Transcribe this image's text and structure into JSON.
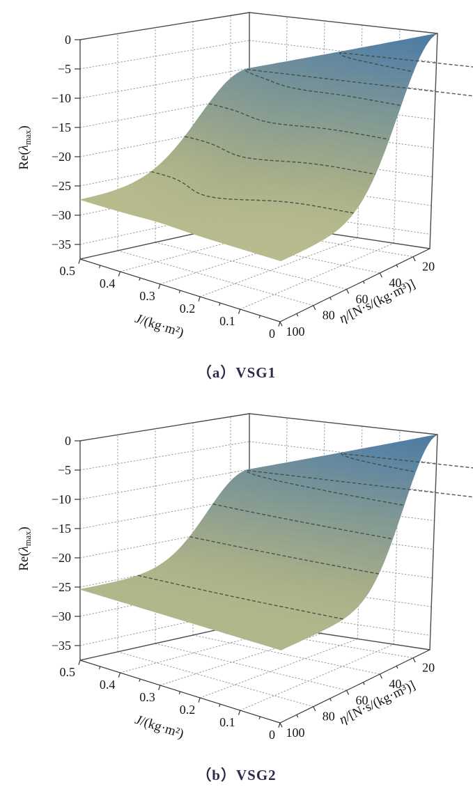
{
  "figure": {
    "background": "#ffffff"
  },
  "captions": [
    {
      "label": "（a）VSG1",
      "color": "#2b2b4a"
    },
    {
      "label": "（b）VSG2",
      "color": "#2b2b4a"
    }
  ],
  "chart_data": [
    {
      "type": "surface3d",
      "title": "（a）VSG1",
      "x_axis": {
        "label": "J/(kg·m²)",
        "label_parts": [
          [
            "J",
            "i"
          ],
          [
            "/(kg·m²)",
            "n"
          ]
        ],
        "min": 0,
        "max": 0.5,
        "ticks": [
          0.5,
          0.4,
          0.3,
          0.2,
          0.1,
          0
        ],
        "tick_labels": [
          "0.5",
          "0.4",
          "0.3",
          "0.2",
          "0.1",
          "0"
        ],
        "minor_ticks": [
          0.45,
          0.35,
          0.25,
          0.15,
          0.05
        ]
      },
      "y_axis": {
        "label": "η/[N·s/(kg·m³)]",
        "label_parts": [
          [
            "η",
            "i"
          ],
          [
            "/[N·s/(kg·m³)]",
            "n"
          ]
        ],
        "min": 10,
        "max": 100,
        "ticks": [
          100,
          80,
          60,
          40,
          20
        ],
        "tick_labels": [
          "100",
          "80",
          "60",
          "40",
          "20"
        ],
        "minor_ticks": [
          90,
          70,
          50,
          30
        ]
      },
      "z_axis": {
        "label": "Re(λmax)",
        "label_parts": [
          [
            "Re(",
            "n"
          ],
          [
            "λ",
            "i"
          ],
          [
            "max",
            "sub"
          ],
          [
            ")",
            "n"
          ]
        ],
        "min": -37.5,
        "max": 0,
        "ticks": [
          0,
          -5,
          -10,
          -15,
          -20,
          -25,
          -30,
          -35
        ],
        "tick_labels": [
          "0",
          "−5",
          "−10",
          "−15",
          "−20",
          "−25",
          "−30",
          "−35"
        ]
      },
      "contour_levels": [
        -5,
        -10,
        -15,
        -20,
        -25
      ],
      "surface_model": {
        "plateau": -27.4,
        "ridge_slope": -20,
        "width0": 30,
        "width_J": 14,
        "width_bump": {
          "amp": 9,
          "center_J": 0.3,
          "sigma": 0.1
        }
      },
      "sample_points": {
        "J": [
          0,
          0.1,
          0.2,
          0.3,
          0.4,
          0.5
        ],
        "eta": [
          10,
          20,
          40,
          60,
          80,
          100
        ],
        "z": [
          [
            0,
            -2.9,
            -17.3,
            -25.7,
            -27.3,
            -27.4
          ],
          [
            -2,
            -4.4,
            -17.1,
            -25.3,
            -27.2,
            -27.4
          ],
          [
            -4,
            -5.7,
            -15.7,
            -24.0,
            -26.9,
            -27.3
          ],
          [
            -6,
            -7.1,
            -14.2,
            -21.8,
            -25.9,
            -27.1
          ],
          [
            -8,
            -9.2,
            -16.7,
            -23.7,
            -26.6,
            -27.3
          ],
          [
            -10,
            -11.2,
            -18.3,
            -24.5,
            -26.9,
            -27.4
          ]
        ]
      }
    },
    {
      "type": "surface3d",
      "title": "（b）VSG2",
      "x_axis": {
        "label": "J/(kg·m²)",
        "label_parts": [
          [
            "J",
            "i"
          ],
          [
            "/(kg·m²)",
            "n"
          ]
        ],
        "min": 0,
        "max": 0.5,
        "ticks": [
          0.5,
          0.4,
          0.3,
          0.2,
          0.1,
          0
        ],
        "tick_labels": [
          "0.5",
          "0.4",
          "0.3",
          "0.2",
          "0.1",
          "0"
        ],
        "minor_ticks": [
          0.45,
          0.35,
          0.25,
          0.15,
          0.05
        ]
      },
      "y_axis": {
        "label": "η/[N·s/(kg·m³)]",
        "label_parts": [
          [
            "η",
            "i"
          ],
          [
            "/[N·s/(kg·m³)]",
            "n"
          ]
        ],
        "min": 10,
        "max": 100,
        "ticks": [
          100,
          80,
          60,
          40,
          20
        ],
        "tick_labels": [
          "100",
          "80",
          "60",
          "40",
          "20"
        ],
        "minor_ticks": [
          90,
          70,
          50,
          30
        ]
      },
      "z_axis": {
        "label": "Re(λmax)",
        "label_parts": [
          [
            "Re(",
            "n"
          ],
          [
            "λ",
            "i"
          ],
          [
            "max",
            "sub"
          ],
          [
            ")",
            "n"
          ]
        ],
        "min": -37.5,
        "max": 0,
        "ticks": [
          0,
          -5,
          -10,
          -15,
          -20,
          -25,
          -30,
          -35
        ],
        "tick_labels": [
          "0",
          "−5",
          "−10",
          "−15",
          "−20",
          "−25",
          "−30",
          "−35"
        ]
      },
      "contour_levels": [
        -5,
        -10,
        -15,
        -20,
        -25
      ],
      "surface_model": {
        "plateau": -25.4,
        "ridge_slope": -20,
        "width0": 26,
        "width_J": 10,
        "width_bump": null
      },
      "sample_points": {
        "J": [
          0,
          0.1,
          0.2,
          0.3,
          0.4,
          0.5
        ],
        "eta": [
          10,
          20,
          40,
          60,
          80,
          100
        ],
        "z": [
          [
            0,
            -3.5,
            -18.7,
            -24.8,
            -25.4,
            -25.4
          ],
          [
            -2,
            -5.0,
            -18.6,
            -24.7,
            -25.4,
            -25.4
          ],
          [
            -4,
            -6.6,
            -18.6,
            -24.5,
            -25.4,
            -25.4
          ],
          [
            -6,
            -8.2,
            -18.8,
            -24.4,
            -25.4,
            -25.4
          ],
          [
            -8,
            -9.8,
            -19.0,
            -24.3,
            -25.4,
            -25.4
          ],
          [
            -10,
            -11.5,
            -19.4,
            -24.3,
            -25.4,
            -25.4
          ]
        ]
      }
    }
  ],
  "style": {
    "surface_gradient": [
      [
        -37.5,
        "#c2c49a"
      ],
      [
        -28,
        "#b9bc8e"
      ],
      [
        -23,
        "#aab089"
      ],
      [
        -18,
        "#97a58d"
      ],
      [
        -13,
        "#839a93"
      ],
      [
        -8,
        "#6f8e9b"
      ],
      [
        -4,
        "#5d85a3"
      ],
      [
        0,
        "#4d7aa2"
      ]
    ],
    "contour_color": "#3c4a41",
    "grid_color": "#999999",
    "edge_color": "#4b4b4b",
    "tick_color": "#333333",
    "text_color": "#141414"
  }
}
